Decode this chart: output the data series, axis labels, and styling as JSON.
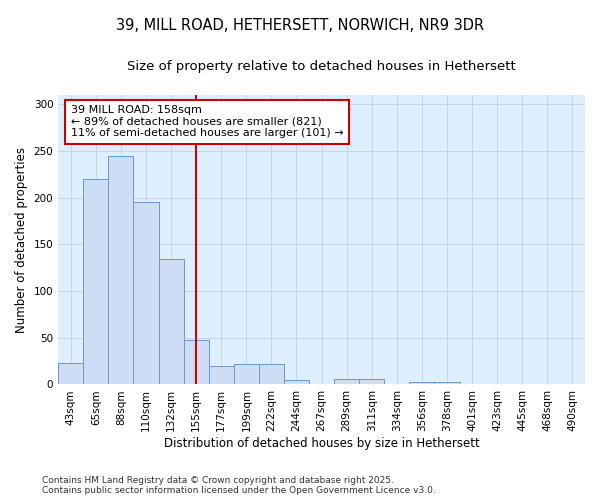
{
  "title_line1": "39, MILL ROAD, HETHERSETT, NORWICH, NR9 3DR",
  "title_line2": "Size of property relative to detached houses in Hethersett",
  "xlabel": "Distribution of detached houses by size in Hethersett",
  "ylabel": "Number of detached properties",
  "categories": [
    "43sqm",
    "65sqm",
    "88sqm",
    "110sqm",
    "132sqm",
    "155sqm",
    "177sqm",
    "199sqm",
    "222sqm",
    "244sqm",
    "267sqm",
    "289sqm",
    "311sqm",
    "334sqm",
    "356sqm",
    "378sqm",
    "401sqm",
    "423sqm",
    "445sqm",
    "468sqm",
    "490sqm"
  ],
  "values": [
    23,
    220,
    245,
    195,
    134,
    48,
    20,
    22,
    22,
    5,
    0,
    6,
    6,
    0,
    3,
    3,
    0,
    1,
    0,
    0,
    1
  ],
  "bar_color": "#ccddf5",
  "bar_edge_color": "#6699cc",
  "vline_color": "#cc0000",
  "vline_x": 5.0,
  "annotation_text": "39 MILL ROAD: 158sqm\n← 89% of detached houses are smaller (821)\n11% of semi-detached houses are larger (101) →",
  "annotation_box_color": "#ffffff",
  "annotation_box_edge": "#cc0000",
  "grid_color": "#c0d0e8",
  "plot_bg": "#ddeeff",
  "fig_bg": "#ffffff",
  "ylim": [
    0,
    310
  ],
  "yticks": [
    0,
    50,
    100,
    150,
    200,
    250,
    300
  ],
  "footer_text": "Contains HM Land Registry data © Crown copyright and database right 2025.\nContains public sector information licensed under the Open Government Licence v3.0.",
  "title_fontsize": 10.5,
  "subtitle_fontsize": 9.5,
  "axis_label_fontsize": 8.5,
  "tick_fontsize": 7.5,
  "annotation_fontsize": 8,
  "footer_fontsize": 6.5
}
